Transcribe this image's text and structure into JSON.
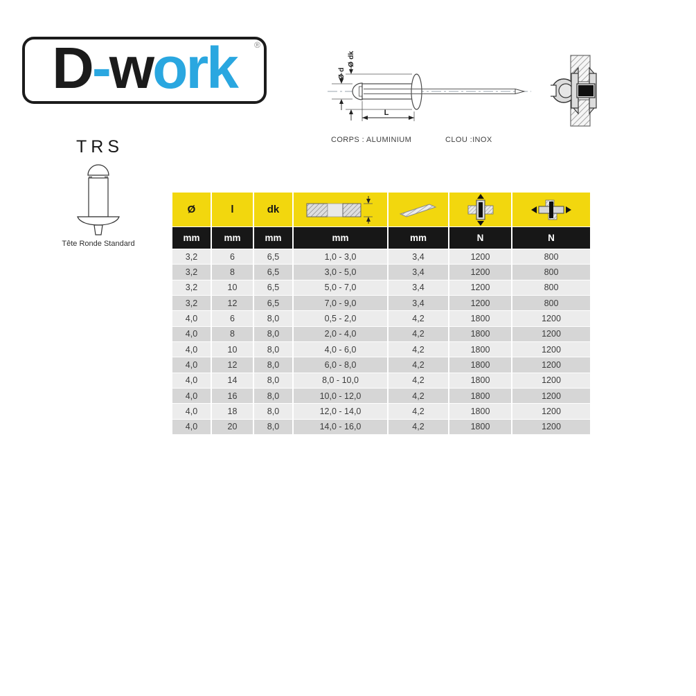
{
  "logo": {
    "parts": [
      {
        "text": "D"
      },
      {
        "text": "-"
      },
      {
        "text": "w"
      },
      {
        "text": "ork"
      }
    ],
    "registered": "®",
    "colors": {
      "dark": "#1b1b1b",
      "blue": "#2aa7e0"
    }
  },
  "drawing": {
    "dim_d": "Ø d",
    "dim_dk": "Ø dk",
    "dim_l": "L",
    "caption_body": "CORPS : ALUMINIUM",
    "caption_nail": "CLOU :INOX"
  },
  "product": {
    "name": "TRS",
    "description": "Tête Ronde Standard"
  },
  "table": {
    "columns": [
      {
        "label": "Ø",
        "unit": "mm"
      },
      {
        "label": "l",
        "unit": "mm"
      },
      {
        "label": "dk",
        "unit": "mm"
      },
      {
        "icon": "grip-range-icon",
        "unit": "mm"
      },
      {
        "icon": "drill-bit-icon",
        "unit": "mm"
      },
      {
        "icon": "tensile-strength-icon",
        "unit": "N"
      },
      {
        "icon": "shear-strength-icon",
        "unit": "N"
      }
    ],
    "rows": [
      [
        "3,2",
        "6",
        "6,5",
        "1,0 - 3,0",
        "3,4",
        "1200",
        "800"
      ],
      [
        "3,2",
        "8",
        "6,5",
        "3,0 - 5,0",
        "3,4",
        "1200",
        "800"
      ],
      [
        "3,2",
        "10",
        "6,5",
        "5,0 - 7,0",
        "3,4",
        "1200",
        "800"
      ],
      [
        "3,2",
        "12",
        "6,5",
        "7,0 - 9,0",
        "3,4",
        "1200",
        "800"
      ],
      [
        "4,0",
        "6",
        "8,0",
        "0,5 - 2,0",
        "4,2",
        "1800",
        "1200"
      ],
      [
        "4,0",
        "8",
        "8,0",
        "2,0 - 4,0",
        "4,2",
        "1800",
        "1200"
      ],
      [
        "4,0",
        "10",
        "8,0",
        "4,0 - 6,0",
        "4,2",
        "1800",
        "1200"
      ],
      [
        "4,0",
        "12",
        "8,0",
        "6,0 - 8,0",
        "4,2",
        "1800",
        "1200"
      ],
      [
        "4,0",
        "14",
        "8,0",
        "8,0 - 10,0",
        "4,2",
        "1800",
        "1200"
      ],
      [
        "4,0",
        "16",
        "8,0",
        "10,0 - 12,0",
        "4,2",
        "1800",
        "1200"
      ],
      [
        "4,0",
        "18",
        "8,0",
        "12,0 - 14,0",
        "4,2",
        "1800",
        "1200"
      ],
      [
        "4,0",
        "20",
        "8,0",
        "14,0 - 16,0",
        "4,2",
        "1800",
        "1200"
      ]
    ],
    "colors": {
      "header_bg": "#f2d70e",
      "units_bg": "#171717",
      "row_odd": "#ececec",
      "row_even": "#d6d6d6"
    }
  }
}
